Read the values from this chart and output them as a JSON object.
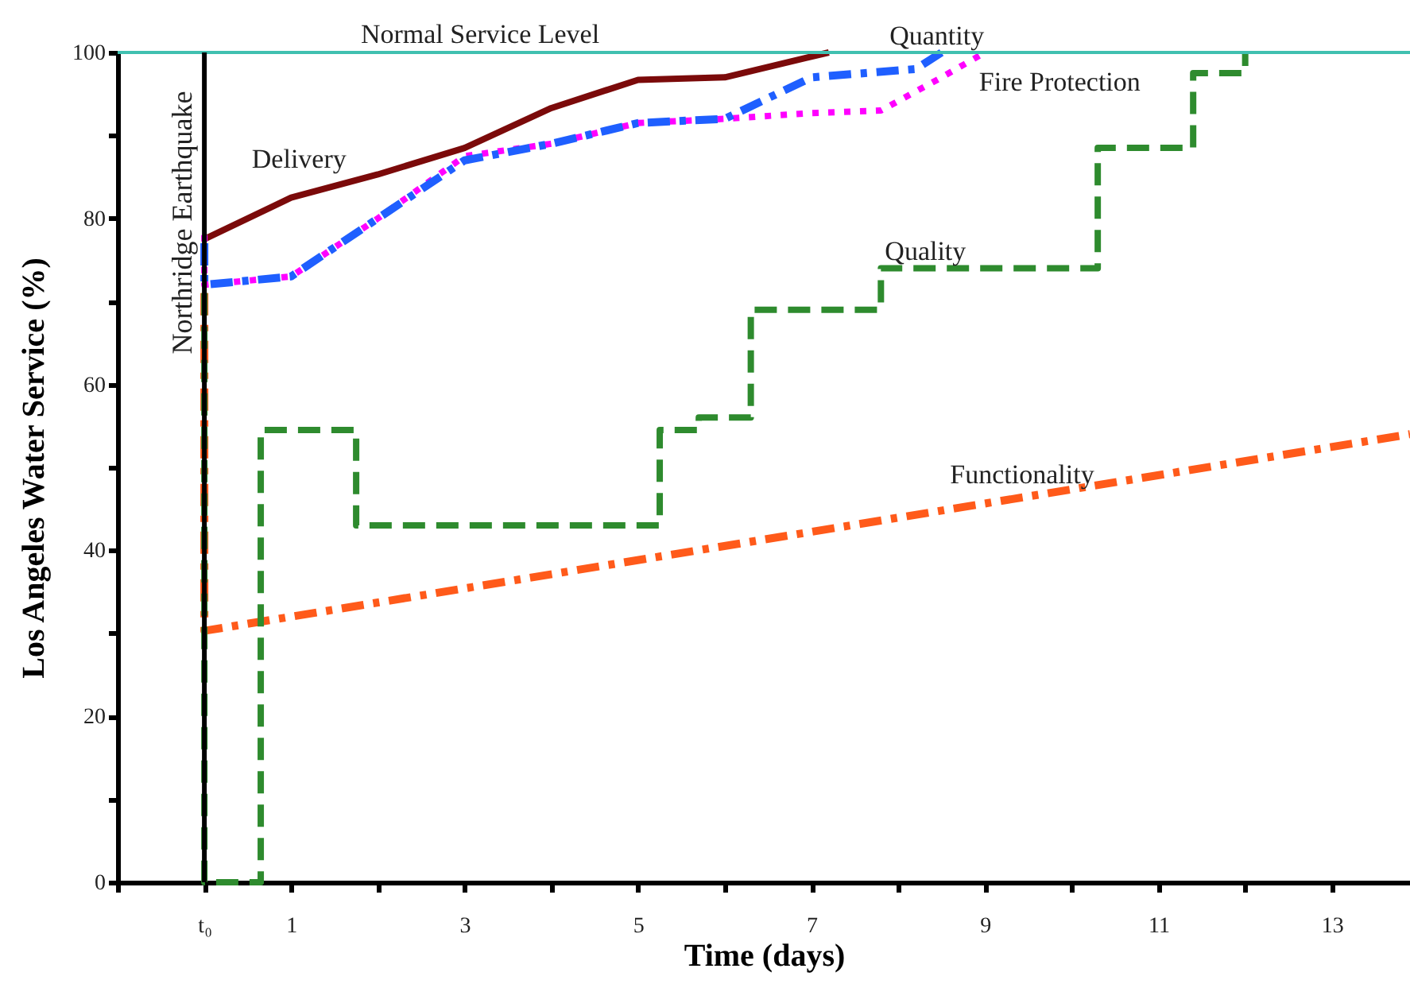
{
  "chart_data": {
    "type": "line",
    "xlabel": "Time (days)",
    "ylabel": "Los Angeles Water Service (%)",
    "xlim": [
      -1,
      13.9
    ],
    "ylim": [
      0,
      100
    ],
    "xticks": [
      {
        "value": -1,
        "label": null
      },
      {
        "value": 0,
        "label": "t₀"
      },
      1,
      {
        "value": 2,
        "label": null
      },
      3,
      {
        "value": 4,
        "label": null
      },
      5,
      {
        "value": 6,
        "label": null
      },
      7,
      {
        "value": 8,
        "label": null
      },
      9,
      {
        "value": 10,
        "label": null
      },
      11,
      {
        "value": 12,
        "label": null
      },
      13
    ],
    "yticks": [
      0,
      {
        "value": 10,
        "label": null
      },
      20,
      {
        "value": 30,
        "label": null
      },
      40,
      {
        "value": 50,
        "label": null
      },
      60,
      {
        "value": 70,
        "label": null
      },
      80,
      {
        "value": 90,
        "label": null
      },
      100
    ],
    "grid": false,
    "marker": "none",
    "ref_lines": [
      {
        "axis": "y",
        "value": 100,
        "label": "Normal Service Level",
        "color": "#40c0b0",
        "line_style": "solid"
      },
      {
        "axis": "x",
        "value": 0,
        "label": "Northridge Earthquake",
        "color": "#000000",
        "line_style": "solid"
      }
    ],
    "series": [
      {
        "name": "Delivery",
        "color": "#7b0a0a",
        "line_style": "solid",
        "x": [
          0,
          1,
          2,
          3,
          4,
          5,
          6,
          7.2
        ],
        "values": [
          77.5,
          82.5,
          85.3,
          88.5,
          93.3,
          96.7,
          97,
          100
        ]
      },
      {
        "name": "Quantity",
        "color": "#1f5fff",
        "line_style": "dashdot",
        "x": [
          0,
          0,
          1,
          2,
          3,
          4,
          5,
          6,
          7,
          8.2,
          8.5
        ],
        "values": [
          77,
          72,
          73,
          80,
          87,
          89,
          91.5,
          92,
          97,
          98,
          100
        ]
      },
      {
        "name": "Fire Protection",
        "color": "#ff00ff",
        "line_style": "dotted",
        "x": [
          0,
          0,
          1,
          2,
          3,
          4,
          5,
          6,
          7,
          7.8,
          8.5,
          9
        ],
        "values": [
          78,
          72,
          73,
          80,
          87.5,
          89,
          91.5,
          92,
          92.7,
          93,
          97,
          100
        ]
      },
      {
        "name": "Quality",
        "type": "step",
        "color": "#2e8b2e",
        "line_style": "dashed",
        "x": [
          0,
          0,
          0.65,
          1.75,
          5.25,
          5.7,
          6.3,
          7.8,
          10.3,
          11.4,
          12
        ],
        "values": [
          71,
          0,
          54.5,
          43,
          54.5,
          56,
          69,
          74,
          88.5,
          97.5,
          100
        ]
      },
      {
        "name": "Functionality",
        "color": "#ff5a1a",
        "line_style": "dashdot",
        "x": [
          0,
          0,
          13.9
        ],
        "values": [
          71,
          30.3,
          54
        ]
      }
    ]
  }
}
